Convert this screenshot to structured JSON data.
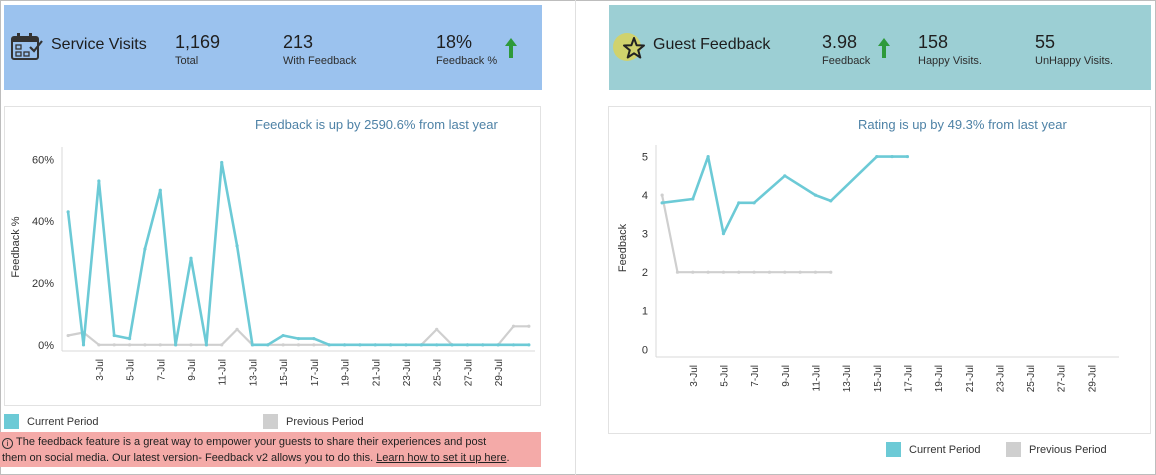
{
  "colors": {
    "current": "#6ccad6",
    "previous": "#cfcfcf",
    "accent_text": "#4e82a6",
    "up_arrow": "#2e9a3a",
    "kpi_left_bg": "#9bc2ee",
    "kpi_right_bg": "#9ccfd4",
    "banner_bg": "#f4aaa8"
  },
  "service_visits": {
    "title": "Service Visits",
    "icon": "calendar-check-icon",
    "metrics": [
      {
        "value": "1,169",
        "label": "Total"
      },
      {
        "value": "213",
        "label": "With Feedback"
      },
      {
        "value": "18%",
        "label": "Feedback %",
        "trend": "up"
      }
    ]
  },
  "guest_feedback": {
    "title": "Guest Feedback",
    "icon": "star-icon",
    "metrics": [
      {
        "value": "3.98",
        "label": "Feedback",
        "trend": "up"
      },
      {
        "value": "158",
        "label": "Happy Visits."
      },
      {
        "value": "55",
        "label": "UnHappy Visits."
      }
    ]
  },
  "left_panel": {
    "headline": "Feedback is up  by 2590.6% from last year",
    "legend": {
      "current": "Current Period",
      "previous": "Previous Period"
    }
  },
  "right_panel": {
    "headline": "Rating is up by 49.3% from last year",
    "legend": {
      "current": "Current Period",
      "previous": "Previous Period"
    }
  },
  "banner": {
    "line1": "The feedback feature is a great way to empower your guests to share their experiences and post",
    "line2": "them on social media. Our latest version- Feedback v2 allows you to do this. ",
    "link": "Learn how to set it up here",
    "line2_end": "."
  },
  "chart_data": [
    {
      "type": "line",
      "ylabel": "Feedback %",
      "xlabel": "",
      "y_unit": "%",
      "ylim": [
        -2,
        64
      ],
      "y_ticks": [
        0,
        20,
        40,
        60
      ],
      "y_tick_labels": [
        "0%",
        "20%",
        "40%",
        "60%"
      ],
      "x_tick_labels": [
        "3-Jul",
        "5-Jul",
        "7-Jul",
        "9-Jul",
        "11-Jul",
        "13-Jul",
        "15-Jul",
        "17-Jul",
        "19-Jul",
        "21-Jul",
        "23-Jul",
        "25-Jul",
        "27-Jul",
        "29-Jul"
      ],
      "x_ticks": [
        3,
        5,
        7,
        9,
        11,
        13,
        15,
        17,
        19,
        21,
        23,
        25,
        27,
        29
      ],
      "xlim": [
        0.6,
        31.4
      ],
      "grid": false,
      "legend": "bottom",
      "series": [
        {
          "name": "Current Period",
          "x": [
            1,
            2,
            3,
            4,
            5,
            6,
            7,
            8,
            9,
            10,
            11,
            12,
            13,
            14,
            15,
            16,
            17,
            18,
            19,
            20,
            21,
            22,
            23,
            24,
            25,
            26,
            27,
            28,
            29,
            30,
            31
          ],
          "values": [
            43,
            0,
            53,
            3,
            2,
            31,
            50,
            0,
            28,
            0,
            59,
            32,
            0,
            0,
            3,
            2,
            2,
            0,
            0,
            0,
            0,
            0,
            0,
            0,
            0,
            0,
            0,
            0,
            0,
            0,
            0
          ]
        },
        {
          "name": "Previous Period",
          "x": [
            1,
            2,
            3,
            4,
            5,
            6,
            7,
            8,
            9,
            10,
            11,
            12,
            13,
            14,
            15,
            16,
            17,
            18,
            19,
            20,
            21,
            22,
            23,
            24,
            25,
            26,
            27,
            28,
            29,
            30,
            31
          ],
          "values": [
            3,
            4,
            0,
            0,
            0,
            0,
            0,
            0,
            0,
            0,
            0,
            5,
            0,
            0,
            0,
            0,
            0,
            0,
            0,
            0,
            0,
            0,
            0,
            0,
            5,
            0,
            0,
            0,
            0,
            6,
            6
          ]
        }
      ]
    },
    {
      "type": "line",
      "ylabel": "Feedback",
      "xlabel": "",
      "ylim": [
        -0.2,
        5.3
      ],
      "y_ticks": [
        0,
        1,
        2,
        3,
        4,
        5
      ],
      "y_tick_labels": [
        "0",
        "1",
        "2",
        "3",
        "4",
        "5"
      ],
      "x_tick_labels": [
        "3-Jul",
        "5-Jul",
        "7-Jul",
        "9-Jul",
        "11-Jul",
        "13-Jul",
        "15-Jul",
        "17-Jul",
        "19-Jul",
        "21-Jul",
        "23-Jul",
        "25-Jul",
        "27-Jul",
        "29-Jul"
      ],
      "x_ticks": [
        3,
        5,
        7,
        9,
        11,
        13,
        15,
        17,
        19,
        21,
        23,
        25,
        27,
        29
      ],
      "xlim": [
        0.6,
        30.8
      ],
      "grid": false,
      "legend": "bottom",
      "series": [
        {
          "name": "Current Period",
          "x": [
            1,
            3,
            4,
            5,
            6,
            7,
            9,
            11,
            12,
            15,
            16,
            17
          ],
          "values": [
            3.8,
            3.9,
            5.0,
            3.0,
            3.8,
            3.8,
            4.5,
            4.0,
            3.85,
            5.0,
            5.0,
            5.0
          ]
        },
        {
          "name": "Previous Period",
          "x": [
            1,
            2,
            3,
            4,
            5,
            6,
            7,
            8,
            9,
            10,
            11,
            12
          ],
          "values": [
            4.0,
            2.0,
            2.0,
            2.0,
            2.0,
            2.0,
            2.0,
            2.0,
            2.0,
            2.0,
            2.0,
            2.0
          ]
        }
      ]
    }
  ]
}
